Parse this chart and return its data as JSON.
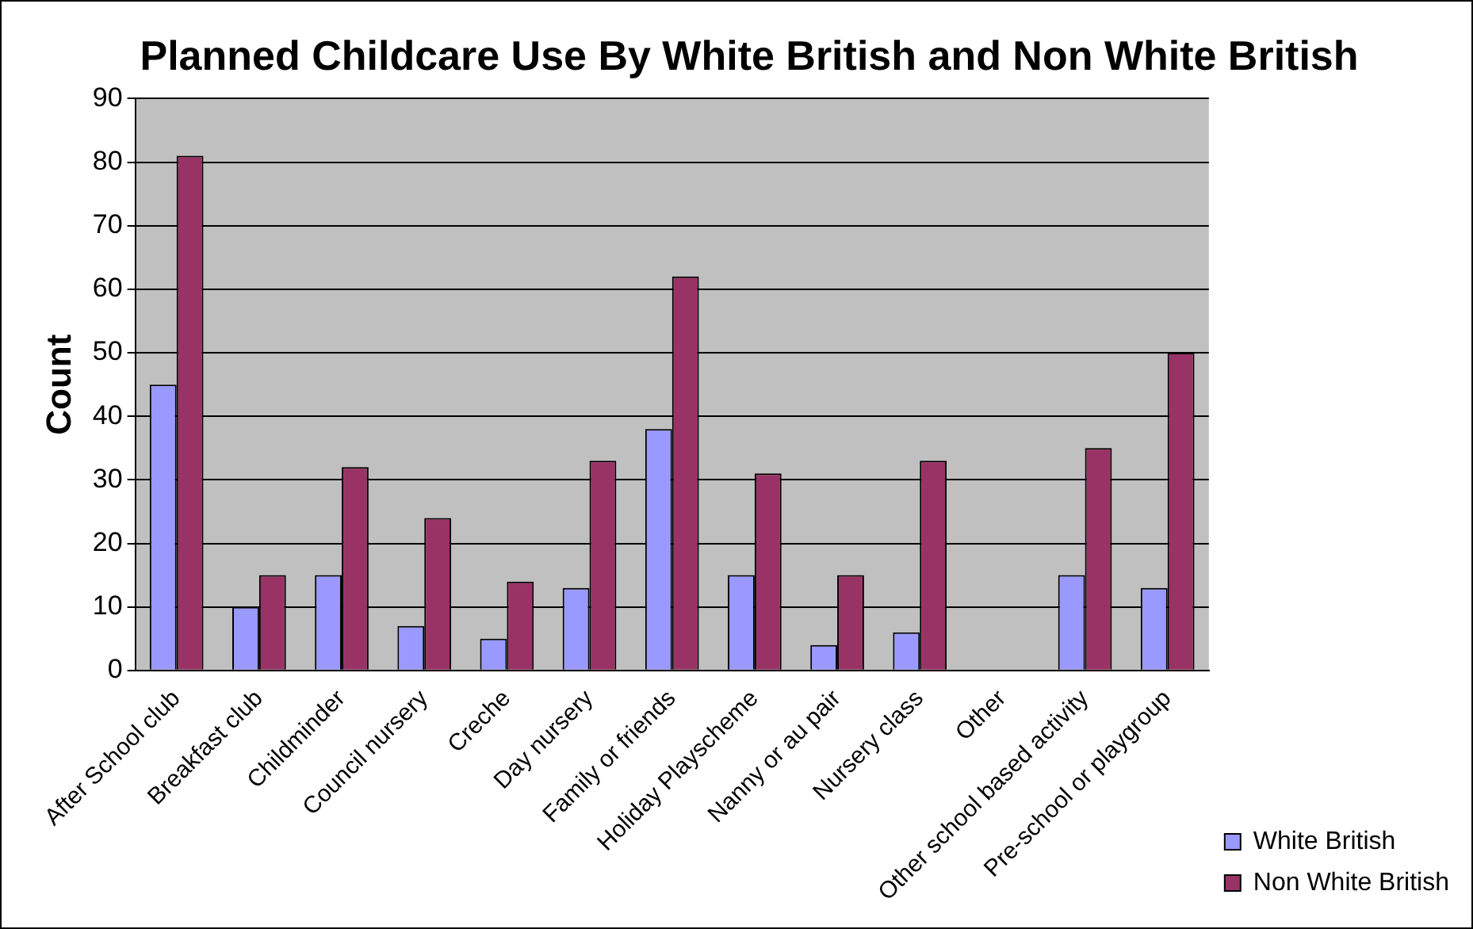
{
  "chart_data": {
    "type": "bar",
    "title": "Planned Childcare Use By White British and Non White British",
    "ylabel": "Count",
    "categories": [
      "After School club",
      "Breakfast club",
      "Childminder",
      "Council nursery",
      "Creche",
      "Day nursery",
      "Family or friends",
      "Holiday Playscheme",
      "Nanny or au pair",
      "Nursery class",
      "Other",
      "Other school based activity",
      "Pre-school or playgroup"
    ],
    "series": [
      {
        "name": "White British",
        "color": "#9999ff",
        "values": [
          45,
          10,
          15,
          7,
          5,
          13,
          38,
          15,
          4,
          6,
          0,
          15,
          13
        ]
      },
      {
        "name": "Non White British",
        "color": "#993366",
        "values": [
          81,
          15,
          32,
          24,
          14,
          33,
          62,
          31,
          15,
          33,
          0,
          35,
          50
        ]
      }
    ],
    "ylim": [
      0,
      90
    ],
    "yticks": [
      0,
      10,
      20,
      30,
      40,
      50,
      60,
      70,
      80,
      90
    ],
    "grid": "y",
    "legend": "bottom right"
  }
}
